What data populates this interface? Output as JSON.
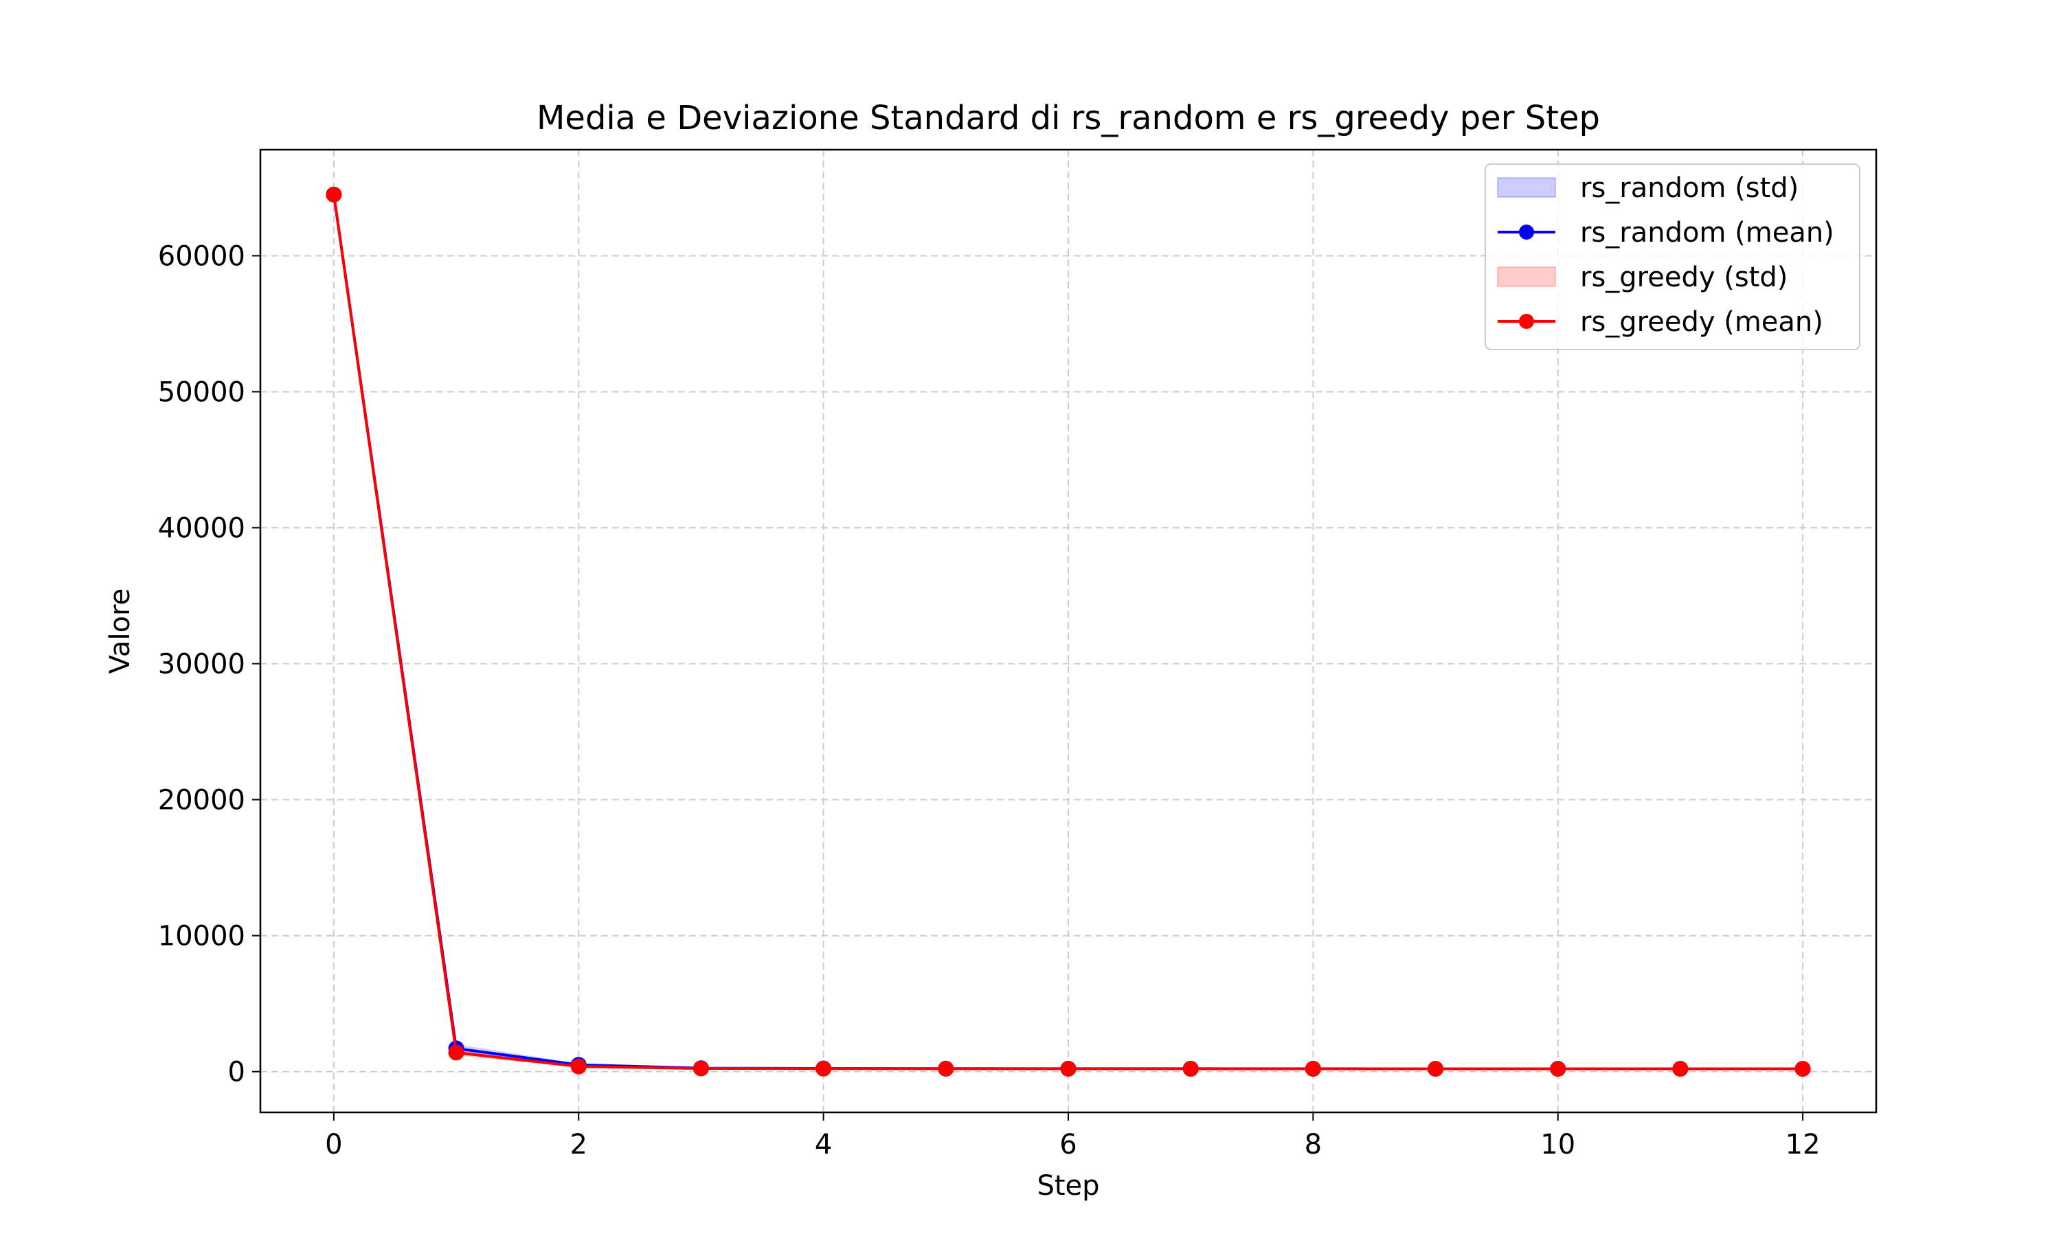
{
  "chart_data": {
    "type": "line",
    "title": "Media e Deviazione Standard di rs_random e rs_greedy per Step",
    "xlabel": "Step",
    "ylabel": "Valore",
    "xlim": [
      -0.6,
      12.6
    ],
    "ylim": [
      -3000,
      67800
    ],
    "x_ticks": [
      0,
      2,
      4,
      6,
      8,
      10,
      12
    ],
    "y_ticks": [
      0,
      10000,
      20000,
      30000,
      40000,
      50000,
      60000
    ],
    "grid": true,
    "legend_position": "top-right",
    "x": [
      0,
      1,
      2,
      3,
      4,
      5,
      6,
      7,
      8,
      9,
      10,
      11,
      12
    ],
    "series": [
      {
        "name": "rs_random (mean)",
        "std_name": "rs_random (std)",
        "color": "#0000ff",
        "values": [
          64500,
          1700,
          500,
          250,
          230,
          220,
          215,
          212,
          210,
          208,
          207,
          206,
          205
        ],
        "std": [
          0,
          300,
          100,
          30,
          20,
          15,
          12,
          10,
          10,
          10,
          10,
          10,
          10
        ]
      },
      {
        "name": "rs_greedy (mean)",
        "std_name": "rs_greedy (std)",
        "color": "#ff0000",
        "values": [
          64500,
          1400,
          380,
          230,
          220,
          215,
          212,
          210,
          208,
          207,
          206,
          205,
          205
        ],
        "std": [
          0,
          200,
          80,
          20,
          15,
          12,
          10,
          10,
          10,
          10,
          10,
          10,
          10
        ]
      }
    ]
  }
}
